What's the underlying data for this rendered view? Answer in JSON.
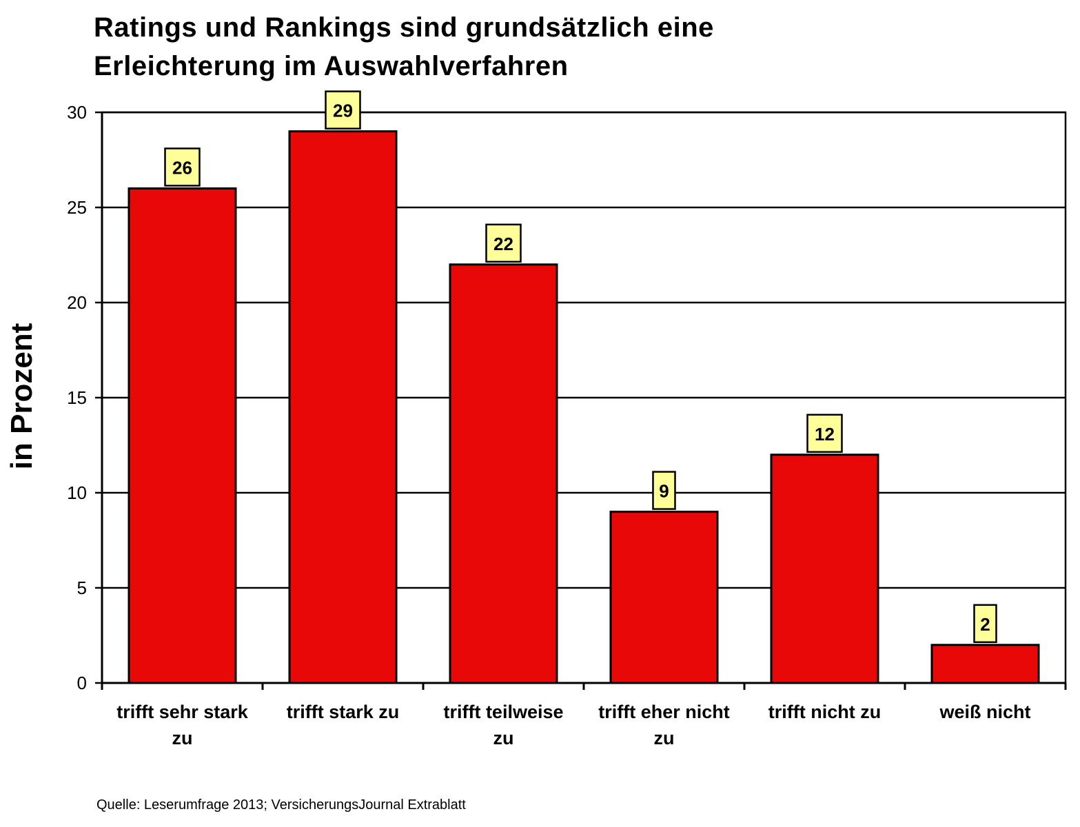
{
  "chart_data": {
    "type": "bar",
    "title_lines": [
      "Ratings und Rankings sind grundsätzlich eine",
      "Erleichterung im Auswahlverfahren"
    ],
    "xlabel": "",
    "ylabel": "in Prozent",
    "categories": [
      [
        "trifft sehr stark",
        "zu"
      ],
      [
        "trifft stark zu"
      ],
      [
        "trifft teilweise",
        "zu"
      ],
      [
        "trifft eher nicht",
        "zu"
      ],
      [
        "trifft nicht zu"
      ],
      [
        "weiß nicht"
      ]
    ],
    "values": [
      26,
      29,
      22,
      9,
      12,
      2
    ],
    "data_labels": [
      "26",
      "29",
      "22",
      "9",
      "12",
      "2"
    ],
    "ylim": [
      0,
      30
    ],
    "yticks": [
      0,
      5,
      10,
      15,
      20,
      25,
      30
    ],
    "grid": true,
    "colors": {
      "bar": "#e80808",
      "label_box": "#ffff99",
      "grid": "#000000"
    },
    "source": "Quelle: Leserumfrage 2013; VersicherungsJournal Extrablatt"
  }
}
